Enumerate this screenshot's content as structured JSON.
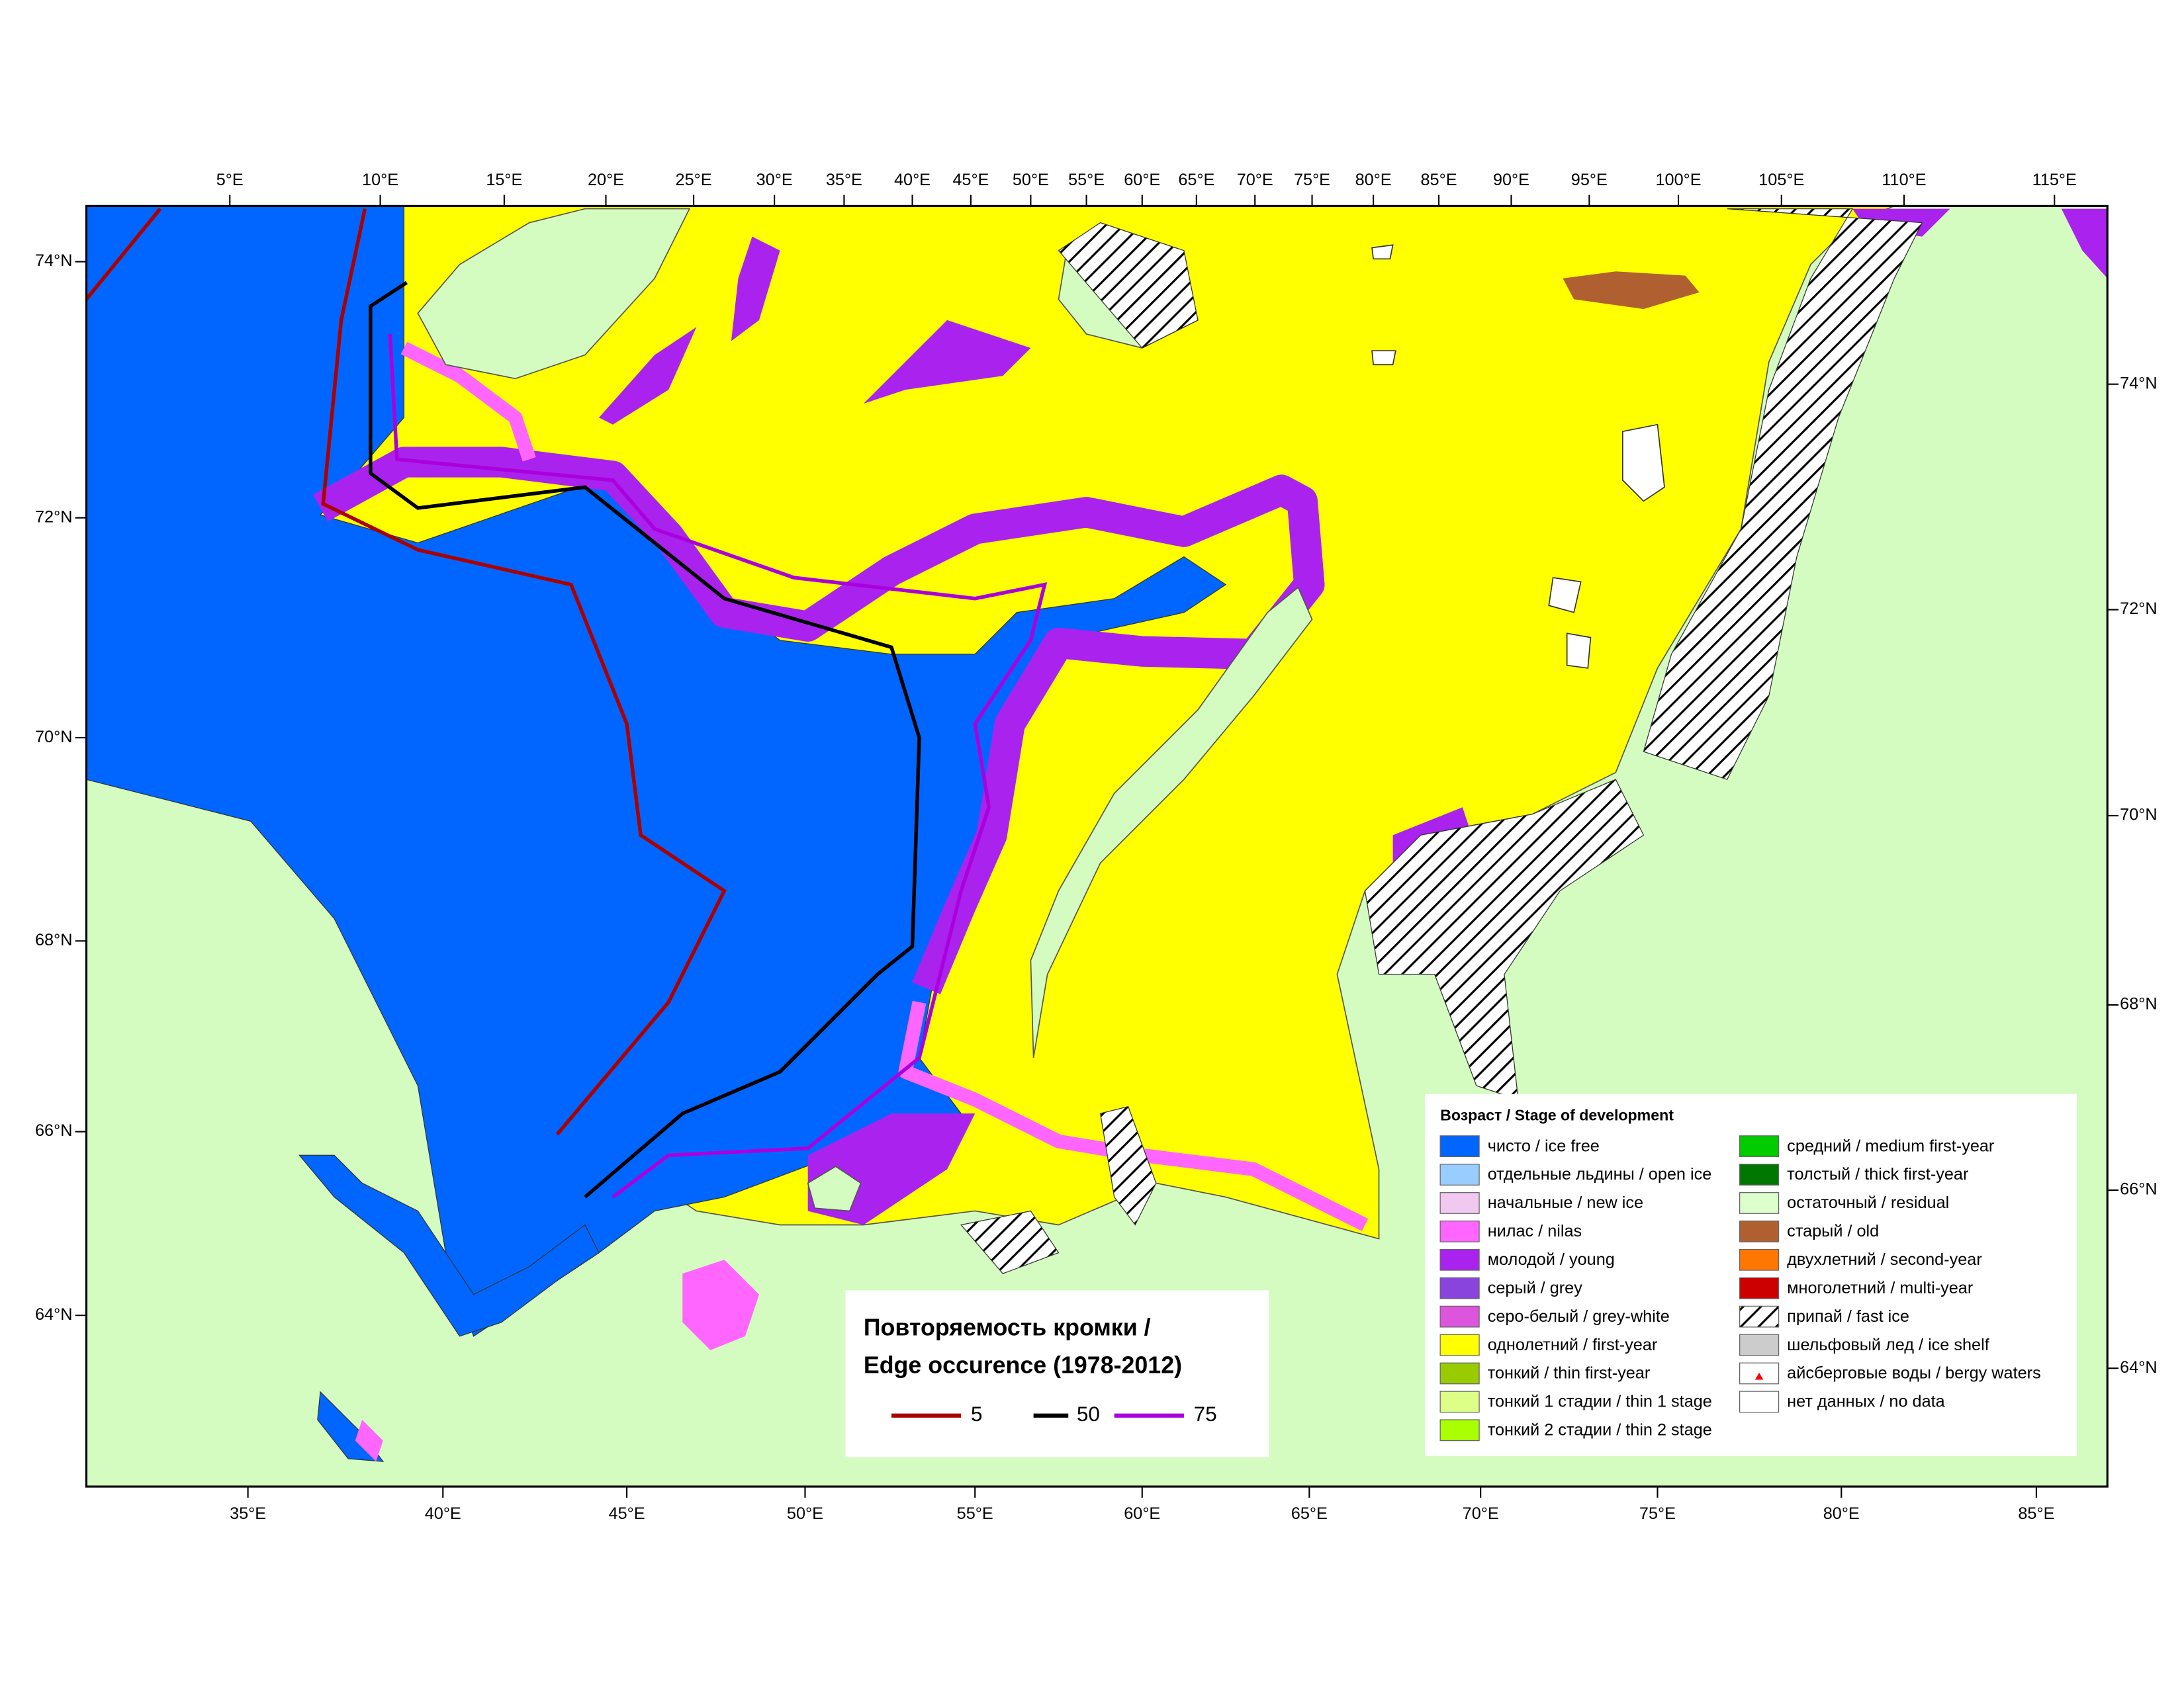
{
  "map": {
    "top_labels": [
      "5°E",
      "10°E",
      "15°E",
      "20°E",
      "25°E",
      "30°E",
      "35°E",
      "40°E",
      "45°E",
      "50°E",
      "55°E",
      "60°E",
      "65°E",
      "70°E",
      "75°E",
      "80°E",
      "85°E",
      "90°E",
      "95°E",
      "100°E",
      "105°E",
      "110°E",
      "115°E"
    ],
    "bottom_labels": [
      "35°E",
      "40°E",
      "45°E",
      "50°E",
      "55°E",
      "60°E",
      "65°E",
      "70°E",
      "75°E",
      "80°E",
      "85°E"
    ],
    "left_labels": [
      "74°N",
      "72°N",
      "70°N",
      "68°N",
      "66°N",
      "64°N"
    ],
    "right_labels": [
      "74°N",
      "72°N",
      "70°N",
      "68°N",
      "66°N",
      "64°N"
    ]
  },
  "legend": {
    "title": "Возраст / Stage of development",
    "items": [
      {
        "label": "чисто / ice free",
        "color": "#0066ff"
      },
      {
        "label": "отдельные льдины / open ice",
        "color": "#99ccff"
      },
      {
        "label": "начальные / new ice",
        "color": "#f0c8f0"
      },
      {
        "label": "нилас / nilas",
        "color": "#ff66ff"
      },
      {
        "label": "молодой / young",
        "color": "#aa22ee"
      },
      {
        "label": "серый / grey",
        "color": "#8844dd"
      },
      {
        "label": "серо-белый / grey-white",
        "color": "#dd55dd"
      },
      {
        "label": "однолетний / first-year",
        "color": "#ffff00"
      },
      {
        "label": "тонкий / thin first-year",
        "color": "#99cc00"
      },
      {
        "label": "тонкий 1 стадии / thin 1 stage",
        "color": "#ddff88"
      },
      {
        "label": "тонкий 2 стадии / thin 2 stage",
        "color": "#aaff00"
      },
      {
        "label": "средний / medium first-year",
        "color": "#00cc00"
      },
      {
        "label": "толстый / thick first-year",
        "color": "#007700"
      },
      {
        "label": "остаточный / residual",
        "color": "#ddffcc"
      },
      {
        "label": "старый / old",
        "color": "#b06030"
      },
      {
        "label": "двухлетний / second-year",
        "color": "#ff7700"
      },
      {
        "label": "многолетний / multi-year",
        "color": "#cc0000"
      },
      {
        "label": "припай / fast ice",
        "color": "#ffffff",
        "pattern": "hatch"
      },
      {
        "label": "шельфовый лед / ice shelf",
        "color": "#cccccc"
      },
      {
        "label": "айсберговые воды / bergy waters",
        "color": "#ffffff",
        "marker": "triangle"
      },
      {
        "label": "нет данных / no data",
        "color": "#ffffff"
      }
    ]
  },
  "edge_legend": {
    "title": [
      "Повторяемость кромки /",
      "Edge occurence (1978-2012)"
    ],
    "series": [
      {
        "name": "5",
        "color": "#aa0000"
      },
      {
        "name": "50",
        "color": "#000000"
      },
      {
        "name": "75",
        "color": "#aa00dd"
      }
    ]
  }
}
